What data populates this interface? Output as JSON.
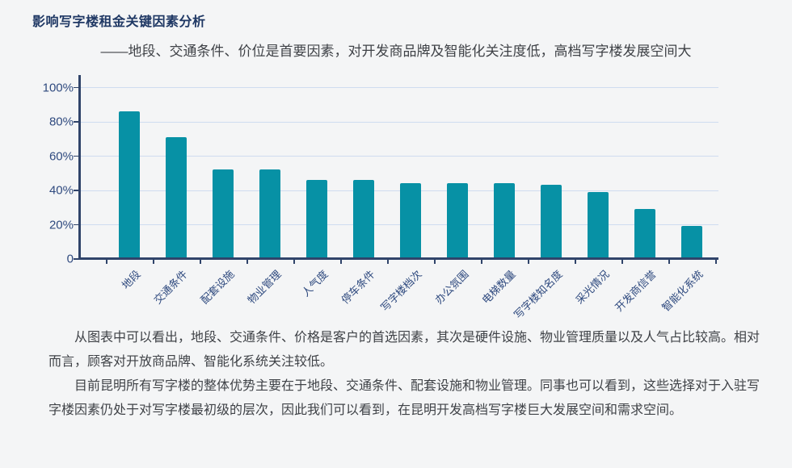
{
  "page": {
    "title": "影响写字楼租金关键因素分析",
    "subtitle": "——地段、交通条件、价位是首要因素，对开发商品牌及智能化关注度低，高档写字楼发展空间大"
  },
  "chart_data": {
    "type": "bar",
    "title": "影响写字楼租金关键因素分析",
    "categories": [
      "地段",
      "交通条件",
      "配套设施",
      "物业管理",
      "人气度",
      "停车条件",
      "写字楼档次",
      "办公氛围",
      "电梯数量",
      "写字楼知名度",
      "采光情况",
      "开发商信誉",
      "智能化系统"
    ],
    "values": [
      86,
      71,
      52,
      52,
      46,
      46,
      44,
      44,
      44,
      43,
      39,
      29,
      19
    ],
    "unit": "%",
    "xlabel": "",
    "ylabel": "",
    "ylim": [
      0,
      100
    ],
    "ytick_values": [
      100,
      80,
      60,
      40,
      20,
      0
    ],
    "ytick_labels": [
      "100%",
      "80%",
      "60%",
      "40%",
      "20%",
      "0"
    ],
    "grid": true,
    "legend_position": "none",
    "colors": {
      "bar": "#0791a5",
      "axis": "#30446a",
      "grid": "#cfdcf0",
      "tick_label": "#2f4a7f"
    }
  },
  "commentary": {
    "paragraph1": "从图表中可以看出，地段、交通条件、价格是客户的首选因素，其次是硬件设施、物业管理质量以及人气占比较高。相对而言，顾客对开放商品牌、智能化系统关注较低。",
    "paragraph2": "目前昆明所有写字楼的整体优势主要在于地段、交通条件、配套设施和物业管理。同事也可以看到，这些选择对于入驻写字楼因素仍处于对写字楼最初级的层次，因此我们可以看到，在昆明开发高档写字楼巨大发展空间和需求空间。"
  }
}
